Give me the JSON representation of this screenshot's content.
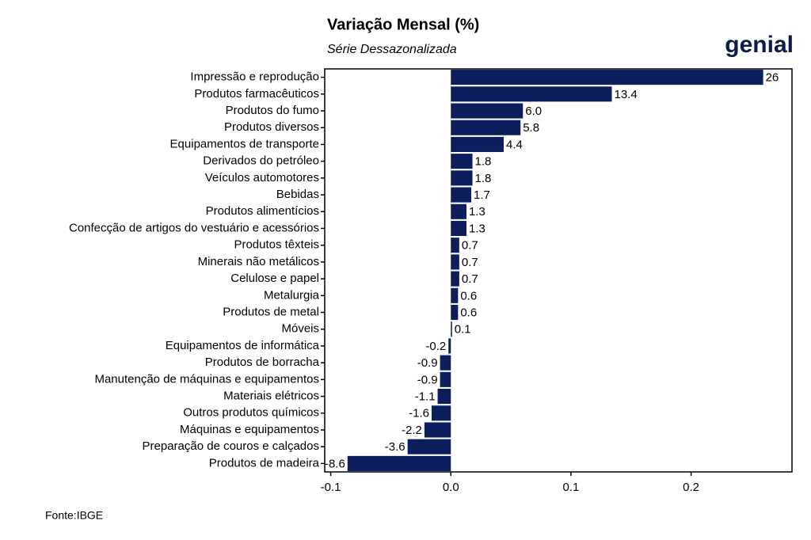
{
  "chart_data": {
    "type": "barh",
    "title": "Variação Mensal (%)",
    "subtitle": "Série Dessazonalizada",
    "logo": "genial",
    "source": "Fonte:IBGE",
    "color": "#0b1f5c",
    "categories": [
      "Impressão e reprodução",
      "Produtos farmacêuticos",
      "Produtos do fumo",
      "Produtos diversos",
      "Equipamentos de transporte",
      "Derivados do petróleo",
      "Veículos automotores",
      "Bebidas",
      "Produtos alimentícios",
      "Confecção de artigos do vestuário e acessórios",
      "Produtos têxteis",
      "Minerais não metálicos",
      "Celulose e papel",
      "Metalurgia",
      "Produtos de metal",
      "Móveis",
      "Equipamentos de informática",
      "Produtos de borracha",
      "Manutenção de máquinas e equipamentos",
      "Materiais elétricos",
      "Outros produtos químicos",
      "Máquinas e equipamentos",
      "Preparação de couros e calçados",
      "Produtos de madeira"
    ],
    "values": [
      0.26,
      0.134,
      0.06,
      0.058,
      0.044,
      0.018,
      0.018,
      0.017,
      0.013,
      0.013,
      0.007,
      0.007,
      0.007,
      0.006,
      0.006,
      0.001,
      -0.002,
      -0.009,
      -0.009,
      -0.011,
      -0.016,
      -0.022,
      -0.036,
      -0.086
    ],
    "value_labels": [
      "26",
      "13.4",
      "6.0",
      "5.8",
      "4.4",
      "1.8",
      "1.8",
      "1.7",
      "1.3",
      "1.3",
      "0.7",
      "0.7",
      "0.7",
      "0.6",
      "0.6",
      "0.1",
      "-0.2",
      "-0.9",
      "-0.9",
      "-1.1",
      "-1.6",
      "-2.2",
      "-3.6",
      "-8.6"
    ],
    "xlim": [
      -0.105,
      0.284
    ],
    "xticks": [
      {
        "value": -0.1,
        "label": "-0.1"
      },
      {
        "value": 0,
        "label": "0.0"
      },
      {
        "value": 0.1,
        "label": "0.1"
      },
      0.2
    ]
  }
}
